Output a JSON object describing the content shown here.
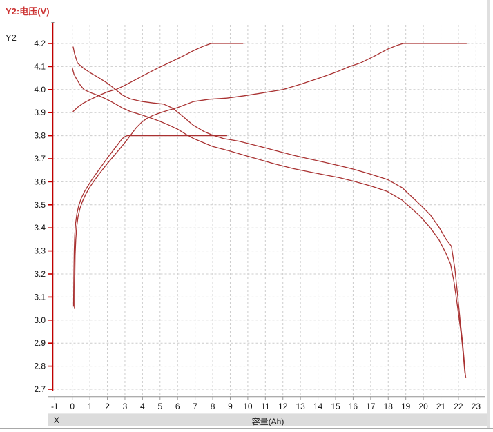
{
  "header": {
    "title": "Y2:电压(V)"
  },
  "y_axis": {
    "name": "Y2"
  },
  "x_axis": {
    "bar_label": "X",
    "title": "容量(Ah)"
  },
  "colors": {
    "title": "#cc3333",
    "axis": "#c00000",
    "curve": "#a93232",
    "grid": "#cccccc",
    "tick_text": "#111111",
    "bar_bg": "#dcdcdc"
  },
  "chart_data": {
    "type": "line",
    "title": "Y2:电压(V)",
    "xlabel": "容量(Ah)",
    "ylabel": "Y2",
    "xlim": [
      -1,
      23
    ],
    "ylim": [
      2.7,
      4.25
    ],
    "grid": true,
    "legend": "none",
    "x_ticks": [
      -1,
      0,
      1,
      2,
      3,
      4,
      5,
      6,
      7,
      8,
      9,
      10,
      11,
      12,
      13,
      14,
      15,
      16,
      17,
      18,
      19,
      20,
      21,
      22,
      23
    ],
    "y_ticks": [
      4.2,
      4.1,
      4.0,
      3.9,
      3.8,
      3.7,
      3.6,
      3.5,
      3.4,
      3.3,
      3.2,
      3.1,
      3.0,
      2.9,
      2.8,
      2.7
    ],
    "series": [
      {
        "id": "charge_cv_3v8",
        "points": [
          [
            0.07,
            3.06
          ],
          [
            0.09,
            3.2
          ],
          [
            0.11,
            3.3
          ],
          [
            0.14,
            3.37
          ],
          [
            0.19,
            3.42
          ],
          [
            0.26,
            3.46
          ],
          [
            0.36,
            3.495
          ],
          [
            0.5,
            3.527
          ],
          [
            0.7,
            3.558
          ],
          [
            0.92,
            3.586
          ],
          [
            1.15,
            3.613
          ],
          [
            1.45,
            3.645
          ],
          [
            1.75,
            3.677
          ],
          [
            2.05,
            3.708
          ],
          [
            2.35,
            3.738
          ],
          [
            2.62,
            3.765
          ],
          [
            2.85,
            3.787
          ],
          [
            3.0,
            3.796
          ],
          [
            3.12,
            3.8
          ],
          [
            8.8,
            3.8
          ]
        ]
      },
      {
        "id": "charge_slow_to_4v2",
        "points": [
          [
            0.12,
            3.05
          ],
          [
            0.14,
            3.18
          ],
          [
            0.16,
            3.28
          ],
          [
            0.2,
            3.35
          ],
          [
            0.25,
            3.405
          ],
          [
            0.33,
            3.45
          ],
          [
            0.44,
            3.485
          ],
          [
            0.58,
            3.515
          ],
          [
            0.78,
            3.548
          ],
          [
            1.0,
            3.577
          ],
          [
            1.25,
            3.605
          ],
          [
            1.55,
            3.636
          ],
          [
            1.85,
            3.665
          ],
          [
            2.15,
            3.693
          ],
          [
            2.45,
            3.72
          ],
          [
            2.75,
            3.747
          ],
          [
            3.05,
            3.775
          ],
          [
            3.35,
            3.805
          ],
          [
            3.65,
            3.835
          ],
          [
            3.95,
            3.858
          ],
          [
            4.25,
            3.875
          ],
          [
            4.6,
            3.888
          ],
          [
            5.0,
            3.899
          ],
          [
            5.5,
            3.911
          ],
          [
            6.0,
            3.922
          ],
          [
            6.9,
            3.948
          ],
          [
            7.8,
            3.958
          ],
          [
            8.8,
            3.963
          ],
          [
            9.8,
            3.973
          ],
          [
            10.8,
            3.985
          ],
          [
            12.0,
            4.0
          ],
          [
            13.0,
            4.023
          ],
          [
            14.0,
            4.048
          ],
          [
            15.0,
            4.075
          ],
          [
            15.8,
            4.1
          ],
          [
            16.4,
            4.115
          ],
          [
            17.2,
            4.145
          ],
          [
            17.95,
            4.175
          ],
          [
            18.5,
            4.192
          ],
          [
            18.85,
            4.2
          ],
          [
            22.45,
            4.2
          ]
        ]
      },
      {
        "id": "charge_fast_to_4v2",
        "points": [
          [
            0.05,
            3.905
          ],
          [
            0.3,
            3.923
          ],
          [
            0.6,
            3.94
          ],
          [
            1.0,
            3.956
          ],
          [
            1.5,
            3.974
          ],
          [
            2.0,
            3.99
          ],
          [
            2.55,
            4.002
          ],
          [
            3.0,
            4.019
          ],
          [
            3.5,
            4.039
          ],
          [
            4.0,
            4.059
          ],
          [
            4.5,
            4.079
          ],
          [
            5.0,
            4.098
          ],
          [
            5.5,
            4.116
          ],
          [
            6.0,
            4.134
          ],
          [
            6.5,
            4.153
          ],
          [
            6.93,
            4.17
          ],
          [
            7.4,
            4.186
          ],
          [
            7.9,
            4.2
          ],
          [
            9.72,
            4.2
          ]
        ]
      },
      {
        "id": "discharge_1",
        "points": [
          [
            0.05,
            4.185
          ],
          [
            0.12,
            4.158
          ],
          [
            0.3,
            4.115
          ],
          [
            0.6,
            4.095
          ],
          [
            1.0,
            4.074
          ],
          [
            1.5,
            4.052
          ],
          [
            2.0,
            4.028
          ],
          [
            2.5,
            3.998
          ],
          [
            2.86,
            3.976
          ],
          [
            3.3,
            3.96
          ],
          [
            4.0,
            3.948
          ],
          [
            4.6,
            3.942
          ],
          [
            5.2,
            3.937
          ],
          [
            5.7,
            3.92
          ],
          [
            6.2,
            3.89
          ],
          [
            6.9,
            3.845
          ],
          [
            7.5,
            3.818
          ],
          [
            8.0,
            3.802
          ],
          [
            8.6,
            3.788
          ],
          [
            9.5,
            3.776
          ],
          [
            10.5,
            3.757
          ],
          [
            11.5,
            3.737
          ],
          [
            12.6,
            3.715
          ],
          [
            13.5,
            3.699
          ],
          [
            14.3,
            3.686
          ],
          [
            15.2,
            3.67
          ],
          [
            16.0,
            3.655
          ],
          [
            17.0,
            3.633
          ],
          [
            17.95,
            3.61
          ],
          [
            18.8,
            3.574
          ],
          [
            19.8,
            3.502
          ],
          [
            20.4,
            3.456
          ],
          [
            20.9,
            3.402
          ],
          [
            21.3,
            3.35
          ],
          [
            21.6,
            3.32
          ],
          [
            21.8,
            3.22
          ],
          [
            21.95,
            3.11
          ],
          [
            22.1,
            2.995
          ],
          [
            22.22,
            2.915
          ],
          [
            22.32,
            2.83
          ],
          [
            22.4,
            2.758
          ]
        ]
      },
      {
        "id": "discharge_2",
        "points": [
          [
            0.0,
            4.095
          ],
          [
            0.1,
            4.066
          ],
          [
            0.25,
            4.045
          ],
          [
            0.45,
            4.02
          ],
          [
            0.67,
            4.0
          ],
          [
            1.0,
            3.988
          ],
          [
            1.5,
            3.974
          ],
          [
            2.0,
            3.957
          ],
          [
            2.5,
            3.936
          ],
          [
            2.86,
            3.92
          ],
          [
            3.3,
            3.905
          ],
          [
            4.0,
            3.889
          ],
          [
            4.5,
            3.876
          ],
          [
            5.0,
            3.862
          ],
          [
            5.5,
            3.846
          ],
          [
            6.0,
            3.828
          ],
          [
            6.5,
            3.805
          ],
          [
            6.9,
            3.788
          ],
          [
            7.5,
            3.769
          ],
          [
            8.0,
            3.753
          ],
          [
            9.0,
            3.733
          ],
          [
            9.7,
            3.717
          ],
          [
            10.5,
            3.7
          ],
          [
            11.5,
            3.678
          ],
          [
            12.6,
            3.657
          ],
          [
            13.5,
            3.643
          ],
          [
            14.3,
            3.631
          ],
          [
            15.2,
            3.618
          ],
          [
            16.0,
            3.603
          ],
          [
            17.0,
            3.582
          ],
          [
            17.95,
            3.558
          ],
          [
            18.8,
            3.52
          ],
          [
            19.8,
            3.452
          ],
          [
            20.4,
            3.4
          ],
          [
            20.9,
            3.347
          ],
          [
            21.3,
            3.288
          ],
          [
            21.55,
            3.243
          ],
          [
            21.75,
            3.165
          ],
          [
            21.9,
            3.085
          ],
          [
            22.05,
            3.0
          ],
          [
            22.18,
            2.925
          ],
          [
            22.28,
            2.845
          ],
          [
            22.36,
            2.775
          ],
          [
            22.42,
            2.75
          ]
        ]
      }
    ]
  }
}
